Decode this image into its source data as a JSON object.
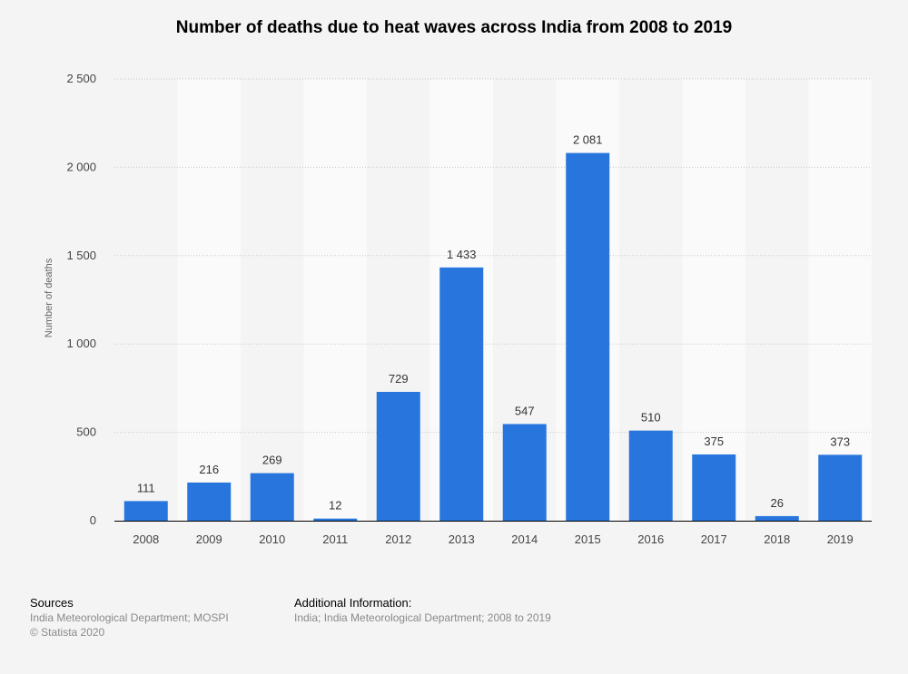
{
  "chart_data": {
    "type": "bar",
    "title": "Number of deaths due to heat waves across India from 2008 to 2019",
    "xlabel": "",
    "ylabel": "Number of deaths",
    "categories": [
      "2008",
      "2009",
      "2010",
      "2011",
      "2012",
      "2013",
      "2014",
      "2015",
      "2016",
      "2017",
      "2018",
      "2019"
    ],
    "values": [
      111,
      216,
      269,
      12,
      729,
      1433,
      547,
      2081,
      510,
      375,
      26,
      373
    ],
    "value_labels": [
      "111",
      "216",
      "269",
      "12",
      "729",
      "1 433",
      "547",
      "2 081",
      "510",
      "375",
      "26",
      "373"
    ],
    "ylim": [
      0,
      2500
    ],
    "yticks": [
      0,
      500,
      1000,
      1500,
      2000,
      2500
    ],
    "ytick_labels": [
      "0",
      "500",
      "1 000",
      "1 500",
      "2 000",
      "2 500"
    ],
    "grid": true,
    "bar_color": "#2876dd"
  },
  "footer": {
    "sources_heading": "Sources",
    "sources_line1": "India Meteorological Department; MOSPI",
    "sources_line2": "© Statista 2020",
    "additional_heading": "Additional Information:",
    "additional_text": "India; India Meteorological Department; 2008 to 2019"
  }
}
